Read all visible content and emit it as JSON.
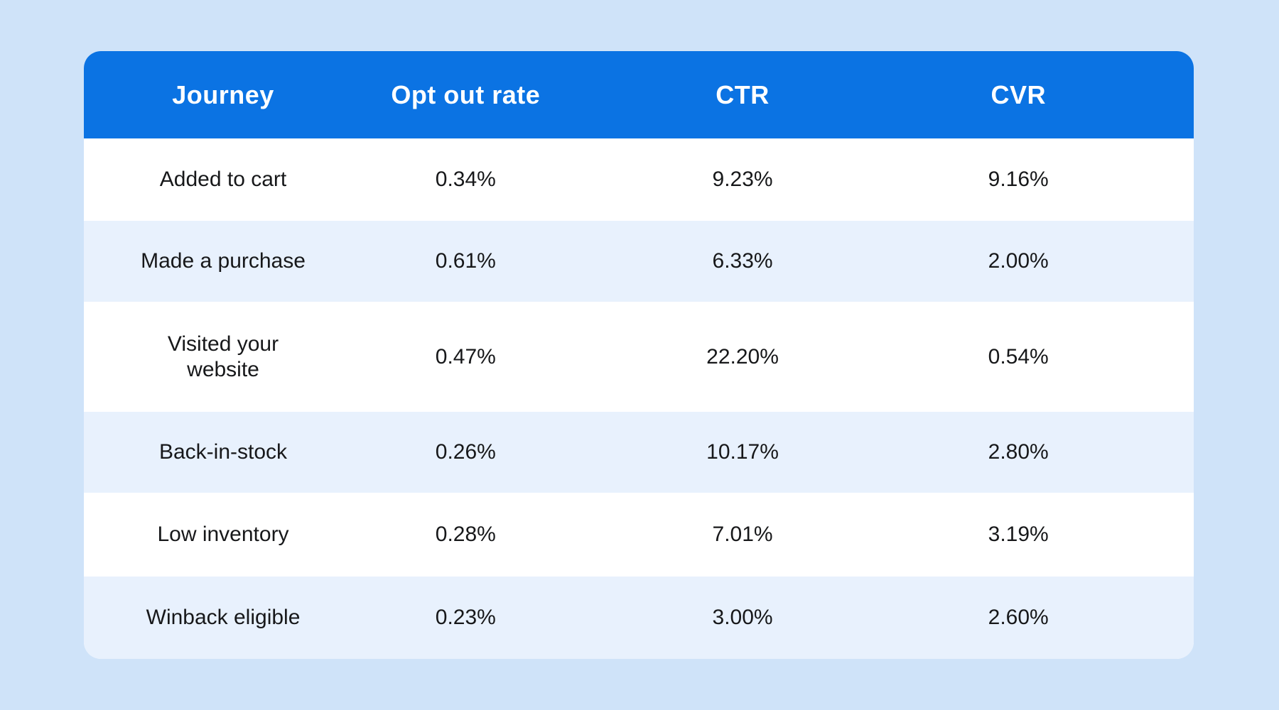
{
  "page": {
    "background_color": "#cfe3f9"
  },
  "table": {
    "header": {
      "background_color": "#0b73e3",
      "text_color": "#ffffff"
    },
    "stripe_color": "#e8f1fd",
    "columns": [
      "Journey",
      "Opt out rate",
      "CTR",
      "CVR"
    ],
    "rows": [
      {
        "cells": [
          "Added to cart",
          "0.34%",
          "9.23%",
          "9.16%"
        ]
      },
      {
        "cells": [
          "Made a purchase",
          "0.61%",
          "6.33%",
          "2.00%"
        ]
      },
      {
        "cells": [
          "Visited your\nwebsite",
          "0.47%",
          "22.20%",
          "0.54%"
        ]
      },
      {
        "cells": [
          "Back-in-stock",
          "0.26%",
          "10.17%",
          "2.80%"
        ]
      },
      {
        "cells": [
          "Low inventory",
          "0.28%",
          "7.01%",
          "3.19%"
        ]
      },
      {
        "cells": [
          "Winback eligible",
          "0.23%",
          "3.00%",
          "2.60%"
        ]
      }
    ]
  },
  "chart_data": {
    "type": "table",
    "columns": [
      "Journey",
      "Opt out rate",
      "CTR",
      "CVR"
    ],
    "rows": [
      [
        "Added to cart",
        "0.34%",
        "9.23%",
        "9.16%"
      ],
      [
        "Made a purchase",
        "0.61%",
        "6.33%",
        "2.00%"
      ],
      [
        "Visited your website",
        "0.47%",
        "22.20%",
        "0.54%"
      ],
      [
        "Back-in-stock",
        "0.26%",
        "10.17%",
        "2.80%"
      ],
      [
        "Low inventory",
        "0.28%",
        "7.01%",
        "3.19%"
      ],
      [
        "Winback eligible",
        "0.23%",
        "3.00%",
        "2.60%"
      ]
    ],
    "values_numeric_percent": {
      "opt_out_rate": [
        0.34,
        0.61,
        0.47,
        0.26,
        0.28,
        0.23
      ],
      "ctr": [
        9.23,
        6.33,
        22.2,
        10.17,
        7.01,
        3.0
      ],
      "cvr": [
        9.16,
        2.0,
        0.54,
        2.8,
        3.19,
        2.6
      ]
    },
    "layout": {
      "header_background": "#0b73e3",
      "row_stripe": "#e8f1fd",
      "page_background": "#cfe3f9",
      "zebra": true,
      "gridlines": false
    }
  }
}
